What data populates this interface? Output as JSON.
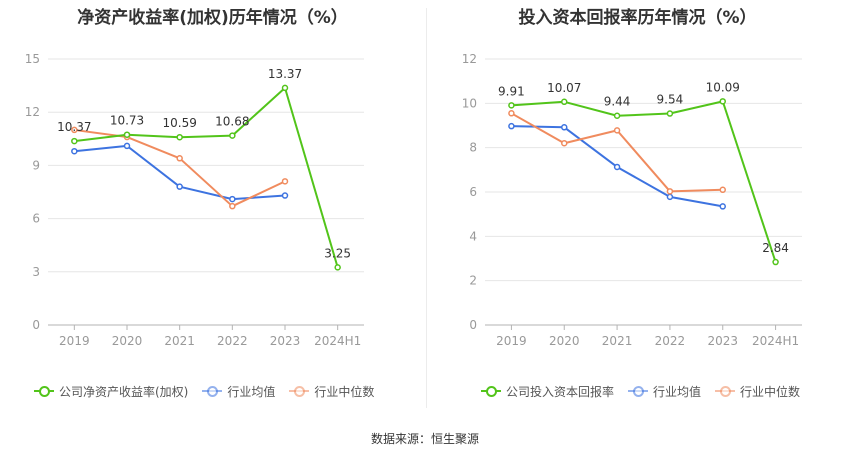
{
  "colors": {
    "company": "#52c41a",
    "avg": "#3d73e0",
    "median": "#f08b5e",
    "grid": "#e6e6e6",
    "axis": "#999999",
    "label": "#333333"
  },
  "source": "数据来源：恒生聚源",
  "chart_data": [
    {
      "type": "line",
      "title": "净资产收益率(加权)历年情况（%）",
      "categories": [
        "2019",
        "2020",
        "2021",
        "2022",
        "2023",
        "2024H1"
      ],
      "yticks": [
        "0",
        "3",
        "6",
        "9",
        "12",
        "15"
      ],
      "ylim": [
        0,
        15
      ],
      "grid": true,
      "legend_position": "bottom-left",
      "series": [
        {
          "name": "公司净资产收益率(加权)",
          "key": "company",
          "values": [
            10.37,
            10.73,
            10.59,
            10.68,
            13.37,
            3.25
          ],
          "labels": [
            "10.37",
            "10.73",
            "10.59",
            "10.68",
            "13.37",
            "3.25"
          ]
        },
        {
          "name": "行业均值",
          "key": "avg",
          "values": [
            9.8,
            10.1,
            7.8,
            7.1,
            7.3,
            null
          ]
        },
        {
          "name": "行业中位数",
          "key": "median",
          "values": [
            11.0,
            10.6,
            9.4,
            6.7,
            8.1,
            null
          ]
        }
      ]
    },
    {
      "type": "line",
      "title": "投入资本回报率历年情况（%）",
      "categories": [
        "2019",
        "2020",
        "2021",
        "2022",
        "2023",
        "2024H1"
      ],
      "yticks": [
        "0",
        "2",
        "4",
        "6",
        "8",
        "10",
        "12"
      ],
      "ylim": [
        0,
        12
      ],
      "grid": true,
      "legend_position": "bottom-left",
      "series": [
        {
          "name": "公司投入资本回报率",
          "key": "company",
          "values": [
            9.91,
            10.07,
            9.44,
            9.54,
            10.09,
            2.84
          ],
          "labels": [
            "9.91",
            "10.07",
            "9.44",
            "9.54",
            "10.09",
            "2.84"
          ]
        },
        {
          "name": "行业均值",
          "key": "avg",
          "values": [
            8.97,
            8.92,
            7.13,
            5.78,
            5.35,
            null
          ]
        },
        {
          "name": "行业中位数",
          "key": "median",
          "values": [
            9.55,
            8.2,
            8.78,
            6.03,
            6.1,
            null
          ]
        }
      ]
    }
  ]
}
